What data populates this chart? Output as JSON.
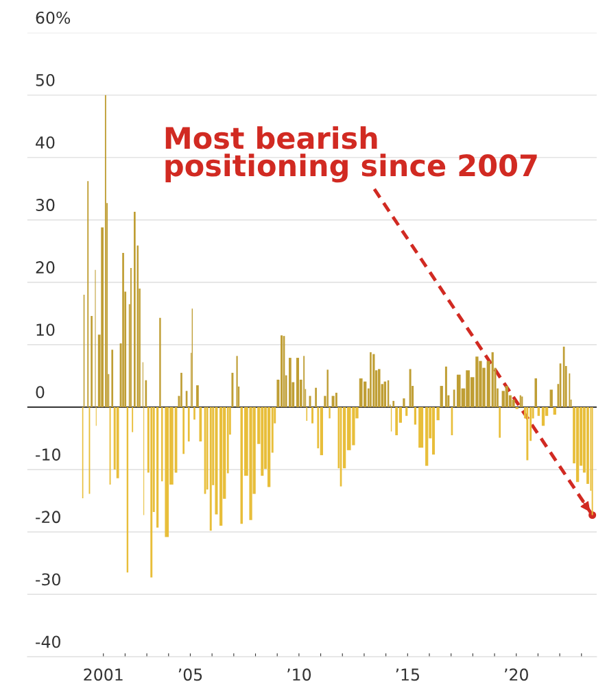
{
  "chart_data": {
    "type": "bar",
    "x": [
      2000.05,
      2000.11,
      2000.29,
      2000.36,
      2000.46,
      2000.63,
      2000.67,
      2000.81,
      2000.95,
      2001.1,
      2001.17,
      2001.24,
      2001.31,
      2001.41,
      2001.52,
      2001.66,
      2001.8,
      2001.91,
      2002.01,
      2002.11,
      2002.2,
      2002.27,
      2002.34,
      2002.44,
      2002.58,
      2002.67,
      2002.82,
      2002.86,
      2002.96,
      2003.07,
      2003.21,
      2003.32,
      2003.49,
      2003.61,
      2003.7,
      2003.92,
      2004.13,
      2004.34,
      2004.48,
      2004.59,
      2004.69,
      2004.83,
      2004.93,
      2005.04,
      2005.09,
      2005.19,
      2005.33,
      2005.47,
      2005.68,
      2005.78,
      2005.94,
      2006.05,
      2006.2,
      2006.41,
      2006.57,
      2006.73,
      2006.83,
      2006.94,
      2007.15,
      2007.23,
      2007.36,
      2007.57,
      2007.78,
      2007.94,
      2008.15,
      2008.31,
      2008.46,
      2008.62,
      2008.78,
      2008.89,
      2009.04,
      2009.2,
      2009.31,
      2009.41,
      2009.59,
      2009.73,
      2009.94,
      2010.09,
      2010.23,
      2010.3,
      2010.36,
      2010.51,
      2010.62,
      2010.78,
      2010.88,
      2011.04,
      2011.2,
      2011.32,
      2011.41,
      2011.57,
      2011.72,
      2011.83,
      2011.93,
      2012.09,
      2012.3,
      2012.51,
      2012.67,
      2012.85,
      2013.04,
      2013.2,
      2013.3,
      2013.44,
      2013.56,
      2013.69,
      2013.83,
      2013.96,
      2014.11,
      2014.2,
      2014.25,
      2014.35,
      2014.49,
      2014.67,
      2014.83,
      2014.95,
      2015.12,
      2015.23,
      2015.35,
      2015.61,
      2015.88,
      2016.04,
      2016.19,
      2016.4,
      2016.56,
      2016.77,
      2016.88,
      2017.04,
      2017.14,
      2017.35,
      2017.56,
      2017.77,
      2017.98,
      2018.19,
      2018.35,
      2018.51,
      2018.72,
      2018.91,
      2019.03,
      2019.14,
      2019.24,
      2019.4,
      2019.56,
      2019.72,
      2019.87,
      2020.03,
      2020.19,
      2020.27,
      2020.4,
      2020.51,
      2020.66,
      2020.77,
      2020.9,
      2021.03,
      2021.24,
      2021.4,
      2021.61,
      2021.77,
      2021.93,
      2022.03,
      2022.19,
      2022.29,
      2022.45,
      2022.52,
      2022.66,
      2022.82,
      2022.98,
      2023.13,
      2023.29,
      2023.43,
      2023.5
    ],
    "values": [
      -14.6,
      18,
      36.2,
      -13.9,
      14.6,
      22,
      -3,
      11.6,
      28.8,
      50,
      32.7,
      5.3,
      -12.4,
      9.2,
      -10,
      -11.4,
      10.2,
      24.7,
      18.5,
      -26.5,
      16.5,
      22.3,
      -4,
      31.3,
      25.9,
      19,
      7.2,
      -17.3,
      4.3,
      -10.5,
      -27.3,
      -16.8,
      -19.3,
      14.3,
      -11.9,
      -20.8,
      -12.4,
      -10.5,
      1.8,
      5.5,
      -7.5,
      2.6,
      -5.5,
      8.7,
      15.8,
      -2,
      3.5,
      -5.5,
      -13.9,
      -13.2,
      -19.8,
      -12.5,
      -17.2,
      -19,
      -14.7,
      -10.6,
      -4.4,
      5.5,
      8.2,
      3.3,
      -18.7,
      -11,
      -18.1,
      -13.9,
      -5.9,
      -11,
      -9.9,
      -12.8,
      -7.3,
      -2.6,
      4.4,
      11.5,
      11.4,
      5.1,
      7.9,
      4,
      7.9,
      4.4,
      8.2,
      2.9,
      -2.2,
      1.8,
      -2.6,
      3.1,
      -6.6,
      -7.7,
      1.8,
      6,
      -1.8,
      1.8,
      2.3,
      -9.8,
      -12.7,
      -9.8,
      -6.9,
      -6.1,
      -1.8,
      4.6,
      4.1,
      3,
      8.8,
      8.5,
      5.9,
      6.1,
      3.7,
      4.1,
      4.3,
      0.4,
      -3.9,
      1,
      -4.5,
      -2.5,
      1.4,
      -1.4,
      6.1,
      3.4,
      -2.8,
      -6.5,
      -9.4,
      -5,
      -7.6,
      -2.1,
      3.4,
      6.5,
      1.9,
      -4.5,
      2.8,
      5.2,
      3,
      5.9,
      4.8,
      8.1,
      7.4,
      6.3,
      7.4,
      8.8,
      6.3,
      3,
      -4.9,
      2.6,
      3.4,
      1.9,
      1.2,
      -0.3,
      1.9,
      1.7,
      -1.8,
      -8.5,
      -5.4,
      -1.8,
      4.6,
      -1.4,
      -3,
      -1.4,
      2.8,
      -1.2,
      3.7,
      7,
      9.7,
      6.6,
      5.4,
      1.2,
      -9,
      -12,
      -9.4,
      -10.5,
      -12.3,
      -13.4,
      -17.3
    ],
    "colors": [
      "#e8be3a",
      "#bf9e34",
      "#bf9e34",
      "#e8be3a",
      "#bf9e34",
      "#bf9e34",
      "#e8be3a",
      "#bf9e34",
      "#bf9e34",
      "#bf9e34",
      "#bf9e34",
      "#bf9e34",
      "#e8be3a",
      "#bf9e34",
      "#e8be3a",
      "#e8be3a",
      "#bf9e34",
      "#bf9e34",
      "#bf9e34",
      "#e8be3a",
      "#bf9e34",
      "#bf9e34",
      "#e8be3a",
      "#bf9e34",
      "#bf9e34",
      "#bf9e34",
      "#bf9e34",
      "#e8be3a",
      "#bf9e34",
      "#e8be3a",
      "#e8be3a",
      "#e8be3a",
      "#e8be3a",
      "#bf9e34",
      "#e8be3a",
      "#e8be3a",
      "#e8be3a",
      "#e8be3a",
      "#bf9e34",
      "#bf9e34",
      "#e8be3a",
      "#bf9e34",
      "#e8be3a",
      "#bf9e34",
      "#bf9e34",
      "#e8be3a",
      "#bf9e34",
      "#e8be3a",
      "#e8be3a",
      "#e8be3a",
      "#e8be3a",
      "#e8be3a",
      "#e8be3a",
      "#e8be3a",
      "#e8be3a",
      "#e8be3a",
      "#e8be3a",
      "#bf9e34",
      "#bf9e34",
      "#bf9e34",
      "#e8be3a",
      "#e8be3a",
      "#e8be3a",
      "#e8be3a",
      "#e8be3a",
      "#e8be3a",
      "#e8be3a",
      "#e8be3a",
      "#e8be3a",
      "#e8be3a",
      "#bf9e34",
      "#bf9e34",
      "#bf9e34",
      "#bf9e34",
      "#bf9e34",
      "#bf9e34",
      "#bf9e34",
      "#bf9e34",
      "#bf9e34",
      "#bf9e34",
      "#e8be3a",
      "#bf9e34",
      "#e8be3a",
      "#bf9e34",
      "#e8be3a",
      "#e8be3a",
      "#bf9e34",
      "#bf9e34",
      "#e8be3a",
      "#bf9e34",
      "#bf9e34",
      "#e8be3a",
      "#e8be3a",
      "#e8be3a",
      "#e8be3a",
      "#e8be3a",
      "#e8be3a",
      "#bf9e34",
      "#bf9e34",
      "#bf9e34",
      "#bf9e34",
      "#bf9e34",
      "#bf9e34",
      "#bf9e34",
      "#bf9e34",
      "#bf9e34",
      "#bf9e34",
      "#bf9e34",
      "#e8be3a",
      "#bf9e34",
      "#e8be3a",
      "#e8be3a",
      "#bf9e34",
      "#e8be3a",
      "#bf9e34",
      "#bf9e34",
      "#e8be3a",
      "#e8be3a",
      "#e8be3a",
      "#e8be3a",
      "#e8be3a",
      "#e8be3a",
      "#bf9e34",
      "#bf9e34",
      "#bf9e34",
      "#e8be3a",
      "#bf9e34",
      "#bf9e34",
      "#bf9e34",
      "#bf9e34",
      "#bf9e34",
      "#bf9e34",
      "#bf9e34",
      "#bf9e34",
      "#bf9e34",
      "#bf9e34",
      "#bf9e34",
      "#bf9e34",
      "#e8be3a",
      "#bf9e34",
      "#bf9e34",
      "#bf9e34",
      "#bf9e34",
      "#e8be3a",
      "#bf9e34",
      "#bf9e34",
      "#e8be3a",
      "#e8be3a",
      "#e8be3a",
      "#e8be3a",
      "#bf9e34",
      "#e8be3a",
      "#e8be3a",
      "#e8be3a",
      "#bf9e34",
      "#e8be3a",
      "#bf9e34",
      "#bf9e34",
      "#bf9e34",
      "#bf9e34",
      "#bf9e34",
      "#bf9e34",
      "#e8be3a",
      "#e8be3a",
      "#e8be3a",
      "#e8be3a",
      "#e8be3a",
      "#e8be3a",
      "#e8be3a"
    ],
    "xlim": [
      1997.5,
      2023.7
    ],
    "xticks": [
      {
        "value": 2001,
        "label": "2001"
      },
      {
        "value": 2002,
        "label": null
      },
      {
        "value": 2003,
        "label": null
      },
      {
        "value": 2004,
        "label": null
      },
      {
        "value": 2005,
        "label": "’05"
      },
      {
        "value": 2006,
        "label": null
      },
      {
        "value": 2007,
        "label": null
      },
      {
        "value": 2008,
        "label": null
      },
      {
        "value": 2009,
        "label": null
      },
      {
        "value": 2010,
        "label": "’10"
      },
      {
        "value": 2011,
        "label": null
      },
      {
        "value": 2012,
        "label": null
      },
      {
        "value": 2013,
        "label": null
      },
      {
        "value": 2014,
        "label": null
      },
      {
        "value": 2015,
        "label": "’15"
      },
      {
        "value": 2016,
        "label": null
      },
      {
        "value": 2017,
        "label": null
      },
      {
        "value": 2018,
        "label": null
      },
      {
        "value": 2019,
        "label": null
      },
      {
        "value": 2020,
        "label": "’20"
      },
      {
        "value": 2021,
        "label": null
      },
      {
        "value": 2022,
        "label": null
      },
      {
        "value": 2023,
        "label": null
      }
    ],
    "ylim": [
      -40,
      60
    ],
    "yticks": [
      -40,
      -30,
      -20,
      -10,
      0,
      10,
      20,
      30,
      40,
      50,
      {
        "value": 60,
        "label": "60%"
      }
    ],
    "grid": "y",
    "annotations": [
      {
        "text": "Most bearish\npositioning since 2007",
        "x": 2023.5,
        "y": -17.3
      }
    ]
  }
}
